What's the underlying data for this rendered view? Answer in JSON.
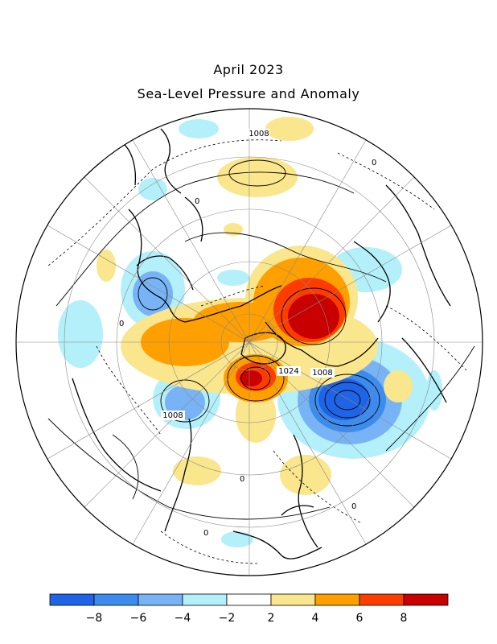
{
  "title": "April 2023",
  "subtitle": "Sea-Level Pressure and Anomaly",
  "contour_labels": [
    "1008",
    "1024",
    "1008",
    "1008",
    "0",
    "0",
    "0",
    "0",
    "0",
    "0"
  ],
  "colorbar": {
    "colors": [
      "#1f64e6",
      "#3c8cf0",
      "#78b4f5",
      "#b4f0fa",
      "#ffffff",
      "#fae68c",
      "#ffa000",
      "#ff3c00",
      "#c80000"
    ],
    "tick_labels": [
      "−8",
      "−6",
      "−4",
      "−2",
      "2",
      "4",
      "6",
      "8"
    ]
  }
}
